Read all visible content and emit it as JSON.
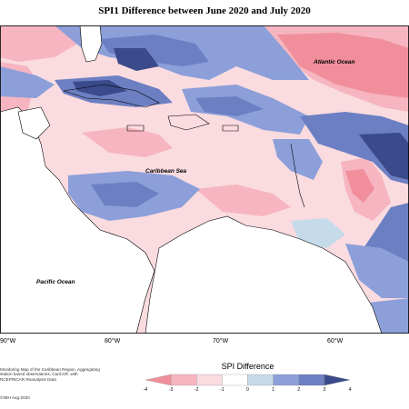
{
  "title": "SPI1 Difference between June 2020 and July 2020",
  "map": {
    "ocean_labels": [
      {
        "id": "atlantic",
        "text": "Atlantic Ocean"
      },
      {
        "id": "caribbean",
        "text": "Caribbean Sea"
      },
      {
        "id": "pacific",
        "text": "Pacific Ocean"
      }
    ],
    "longitude_ticks": [
      "90°W",
      "80°W",
      "70°W",
      "60°W"
    ]
  },
  "notes": {
    "description": "Monitoring Map of the Caribbean Region. Aggregating station based observations, CariCOF, with NCEP/NCAR Reanalysis Data",
    "copyright": "©IMH Aug-2020"
  },
  "legend": {
    "title": "SPI Difference",
    "ticks": [
      "-4",
      "-3",
      "-2",
      "-1",
      "0",
      "1",
      "2",
      "3",
      "4"
    ],
    "bins": [
      {
        "color": "#f08f9b"
      },
      {
        "color": "#f6b5c0"
      },
      {
        "color": "#fadbe0"
      },
      {
        "color": "#ffffff"
      },
      {
        "color": "#c6dbea"
      },
      {
        "color": "#8c9fd9"
      },
      {
        "color": "#6c7fc2"
      },
      {
        "color": "#3a4a8a"
      }
    ]
  },
  "colors": {
    "dry_strong": "#f08f9b",
    "dry_moderate": "#f6b5c0",
    "dry_light": "#fadbe0",
    "neutral": "#ffffff",
    "wet_light": "#c6dbea",
    "wet_moderate": "#8c9fd9",
    "wet_strong": "#6c7fc2",
    "wet_extreme": "#3a4a8a",
    "land": "#ffffff",
    "coastline": "#000000"
  }
}
